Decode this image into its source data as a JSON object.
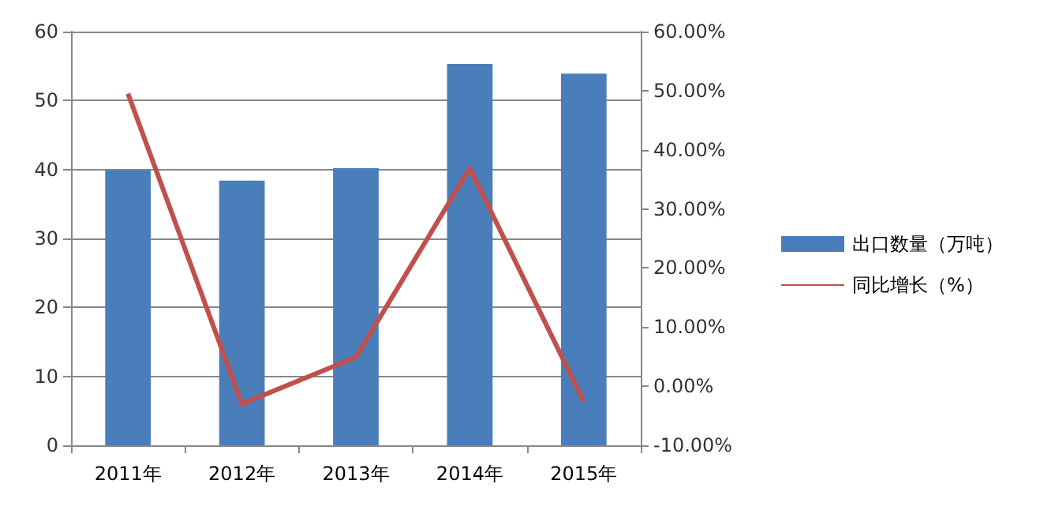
{
  "chart_data": {
    "type": "bar",
    "categories": [
      "2011年",
      "2012年",
      "2013年",
      "2014年",
      "2015年"
    ],
    "series": [
      {
        "name": "出口数量（万吨）",
        "color": "#4a7ebb",
        "values": [
          39.9,
          38.4,
          40.2,
          55.3,
          53.9
        ]
      },
      {
        "name": "同比增长（%）",
        "type": "line",
        "axis": "y2",
        "color": "#c0504d",
        "values": [
          49.5,
          -3.0,
          4.9,
          36.9,
          -2.6
        ]
      }
    ],
    "ylim": [
      0,
      60
    ],
    "yticks": [
      0,
      10,
      20,
      30,
      40,
      50,
      60
    ],
    "y2lim": [
      -10,
      60
    ],
    "y2ticks": [
      {
        "value": -10,
        "label": "-10.00%"
      },
      {
        "value": 0,
        "label": "0.00%"
      },
      {
        "value": 10,
        "label": "10.00%"
      },
      {
        "value": 20,
        "label": "20.00%"
      },
      {
        "value": 30,
        "label": "30.00%"
      },
      {
        "value": 40,
        "label": "40.00%"
      },
      {
        "value": 50,
        "label": "50.00%"
      },
      {
        "value": 60,
        "label": "60.00%"
      }
    ],
    "grid": "y",
    "legend": "right",
    "marker": "none"
  }
}
